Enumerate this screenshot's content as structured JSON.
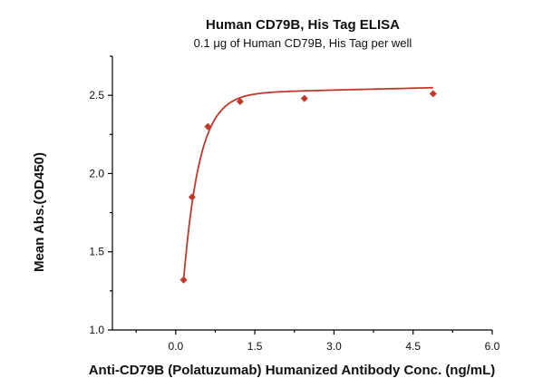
{
  "chart_data": {
    "type": "scatter",
    "title": "Human CD79B, His Tag ELISA",
    "subtitle": "0.1 μg of Human CD79B, His Tag per well",
    "xlabel": "Anti-CD79B (Polatuzumab) Humanized Antibody Conc. (ng/mL)",
    "ylabel": "Mean Abs.(OD450)",
    "xlim": [
      -1.2,
      6.0
    ],
    "ylim": [
      1.0,
      2.75
    ],
    "xticks": [
      "0.0",
      "1.5",
      "3.0",
      "4.5",
      "6.0"
    ],
    "yticks": [
      "1.0",
      "1.5",
      "2.0",
      "2.5"
    ],
    "grid": false,
    "colors": {
      "series": "#c0392b"
    },
    "series": [
      {
        "x": [
          0.15,
          0.31,
          0.61,
          1.22,
          2.44,
          4.88
        ],
        "y": [
          1.32,
          1.85,
          2.3,
          2.46,
          2.48,
          2.51
        ]
      }
    ]
  }
}
